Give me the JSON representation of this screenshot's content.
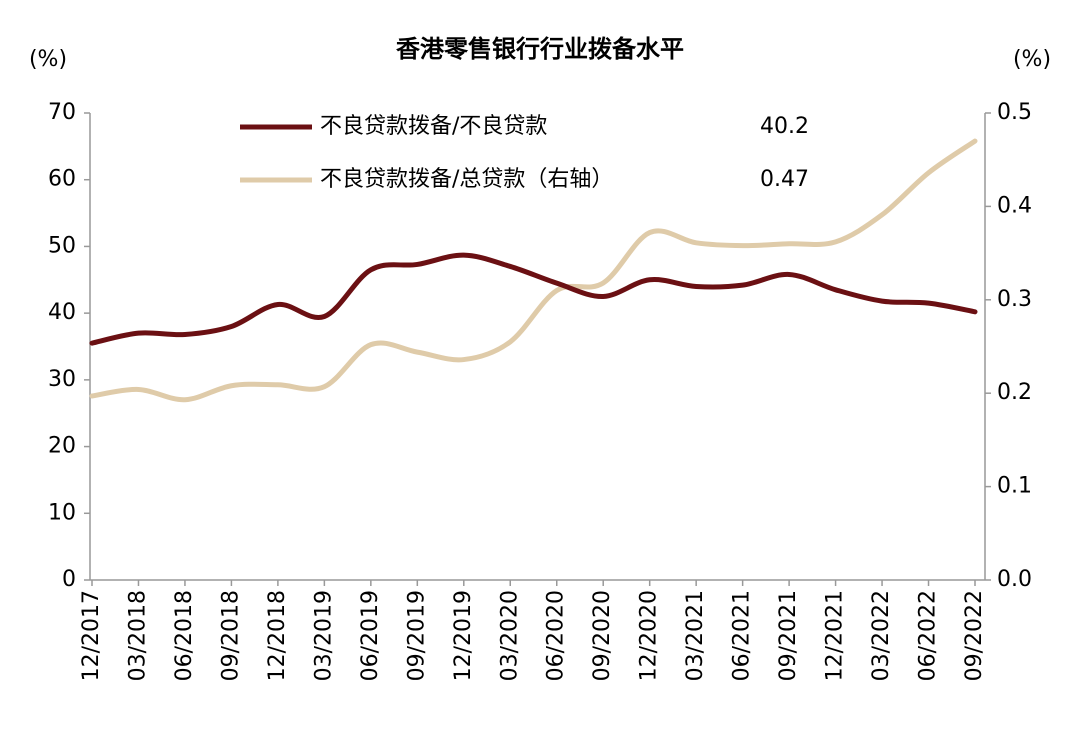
{
  "chart_data": {
    "type": "line",
    "title": "香港零售银行行业拨备水平",
    "y_label": "(%)",
    "y2_label": "(%)",
    "categories": [
      "12/2017",
      "03/2018",
      "06/2018",
      "09/2018",
      "12/2018",
      "03/2019",
      "06/2019",
      "09/2019",
      "12/2019",
      "03/2020",
      "06/2020",
      "09/2020",
      "12/2020",
      "03/2021",
      "06/2021",
      "09/2021",
      "12/2021",
      "03/2022",
      "06/2022",
      "09/2022"
    ],
    "series": [
      {
        "name": "不良贷款拨备/不良贷款",
        "color": "#6b1013",
        "values": [
          35.5,
          37.0,
          36.8,
          38.0,
          41.3,
          39.5,
          46.5,
          47.3,
          48.7,
          47.0,
          44.5,
          42.5,
          45.0,
          44.0,
          44.2,
          45.8,
          43.5,
          41.8,
          41.5,
          40.2
        ]
      },
      {
        "name": "不良贷款拨备/总贷款（右轴）",
        "color": "#dfcba9",
        "axis": "y2",
        "values": [
          0.197,
          0.204,
          0.193,
          0.208,
          0.209,
          0.207,
          0.252,
          0.244,
          0.236,
          0.255,
          0.31,
          0.318,
          0.372,
          0.361,
          0.358,
          0.36,
          0.362,
          0.391,
          0.436,
          0.47
        ]
      }
    ],
    "ylim": [
      0,
      70
    ],
    "yticks": [
      0,
      10,
      20,
      30,
      40,
      50,
      60,
      70
    ],
    "y2lim": [
      0,
      0.5
    ],
    "y2ticks": [
      {
        "value": 0,
        "label": "0.0"
      },
      0.1,
      0.2,
      0.3,
      0.4,
      0.5
    ]
  }
}
